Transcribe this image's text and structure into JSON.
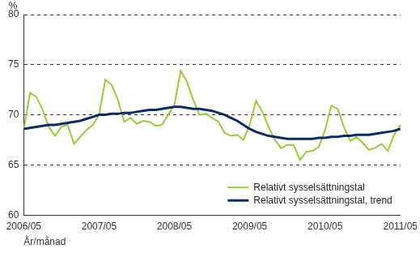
{
  "chart_data": {
    "type": "line",
    "y_label": "%",
    "x_label": "År/månad",
    "categories": [
      "2006/05",
      null,
      null,
      null,
      null,
      null,
      null,
      null,
      null,
      null,
      null,
      null,
      "2007/05",
      null,
      null,
      null,
      null,
      null,
      null,
      null,
      null,
      null,
      null,
      null,
      "2008/05",
      null,
      null,
      null,
      null,
      null,
      null,
      null,
      null,
      null,
      null,
      null,
      "2009/05",
      null,
      null,
      null,
      null,
      null,
      null,
      null,
      null,
      null,
      null,
      null,
      "2010/05",
      null,
      null,
      null,
      null,
      null,
      null,
      null,
      null,
      null,
      null,
      null,
      "2011/05"
    ],
    "series": [
      {
        "name": "Relativt sysselsättningstal",
        "color": "#99cc33",
        "values": [
          68.5,
          72.2,
          71.8,
          70.5,
          68.8,
          67.9,
          68.8,
          69.0,
          67.1,
          67.8,
          68.5,
          69.0,
          70.0,
          73.5,
          73.0,
          71.5,
          69.3,
          69.7,
          69.1,
          69.4,
          69.3,
          68.9,
          69.0,
          70.0,
          71.0,
          74.4,
          73.3,
          71.5,
          70.0,
          70.1,
          69.7,
          69.3,
          68.2,
          67.9,
          68.0,
          67.5,
          69.0,
          71.4,
          70.3,
          68.8,
          67.5,
          66.7,
          67.0,
          67.0,
          65.5,
          66.3,
          66.4,
          66.8,
          68.5,
          70.9,
          70.6,
          68.8,
          67.4,
          67.8,
          67.2,
          66.5,
          66.7,
          67.1,
          66.4,
          68.0,
          69.0
        ]
      },
      {
        "name": "Relativt sysselsättningstal, trend",
        "color": "#0d2a6b",
        "values": [
          68.6,
          68.7,
          68.8,
          68.9,
          69.0,
          69.0,
          69.1,
          69.2,
          69.3,
          69.4,
          69.6,
          69.8,
          70.0,
          70.0,
          70.1,
          70.1,
          70.2,
          70.2,
          70.3,
          70.4,
          70.5,
          70.5,
          70.6,
          70.7,
          70.8,
          70.8,
          70.7,
          70.6,
          70.6,
          70.5,
          70.4,
          70.2,
          70.0,
          69.7,
          69.4,
          69.0,
          68.6,
          68.3,
          68.1,
          67.9,
          67.8,
          67.7,
          67.6,
          67.6,
          67.6,
          67.6,
          67.6,
          67.7,
          67.7,
          67.8,
          67.8,
          67.9,
          67.9,
          68.0,
          68.0,
          68.0,
          68.1,
          68.2,
          68.3,
          68.4,
          68.6
        ]
      }
    ],
    "ylim": [
      60,
      80
    ],
    "yticks": [
      60,
      65,
      70,
      75,
      80
    ],
    "grid": true,
    "legend": "lower right"
  }
}
